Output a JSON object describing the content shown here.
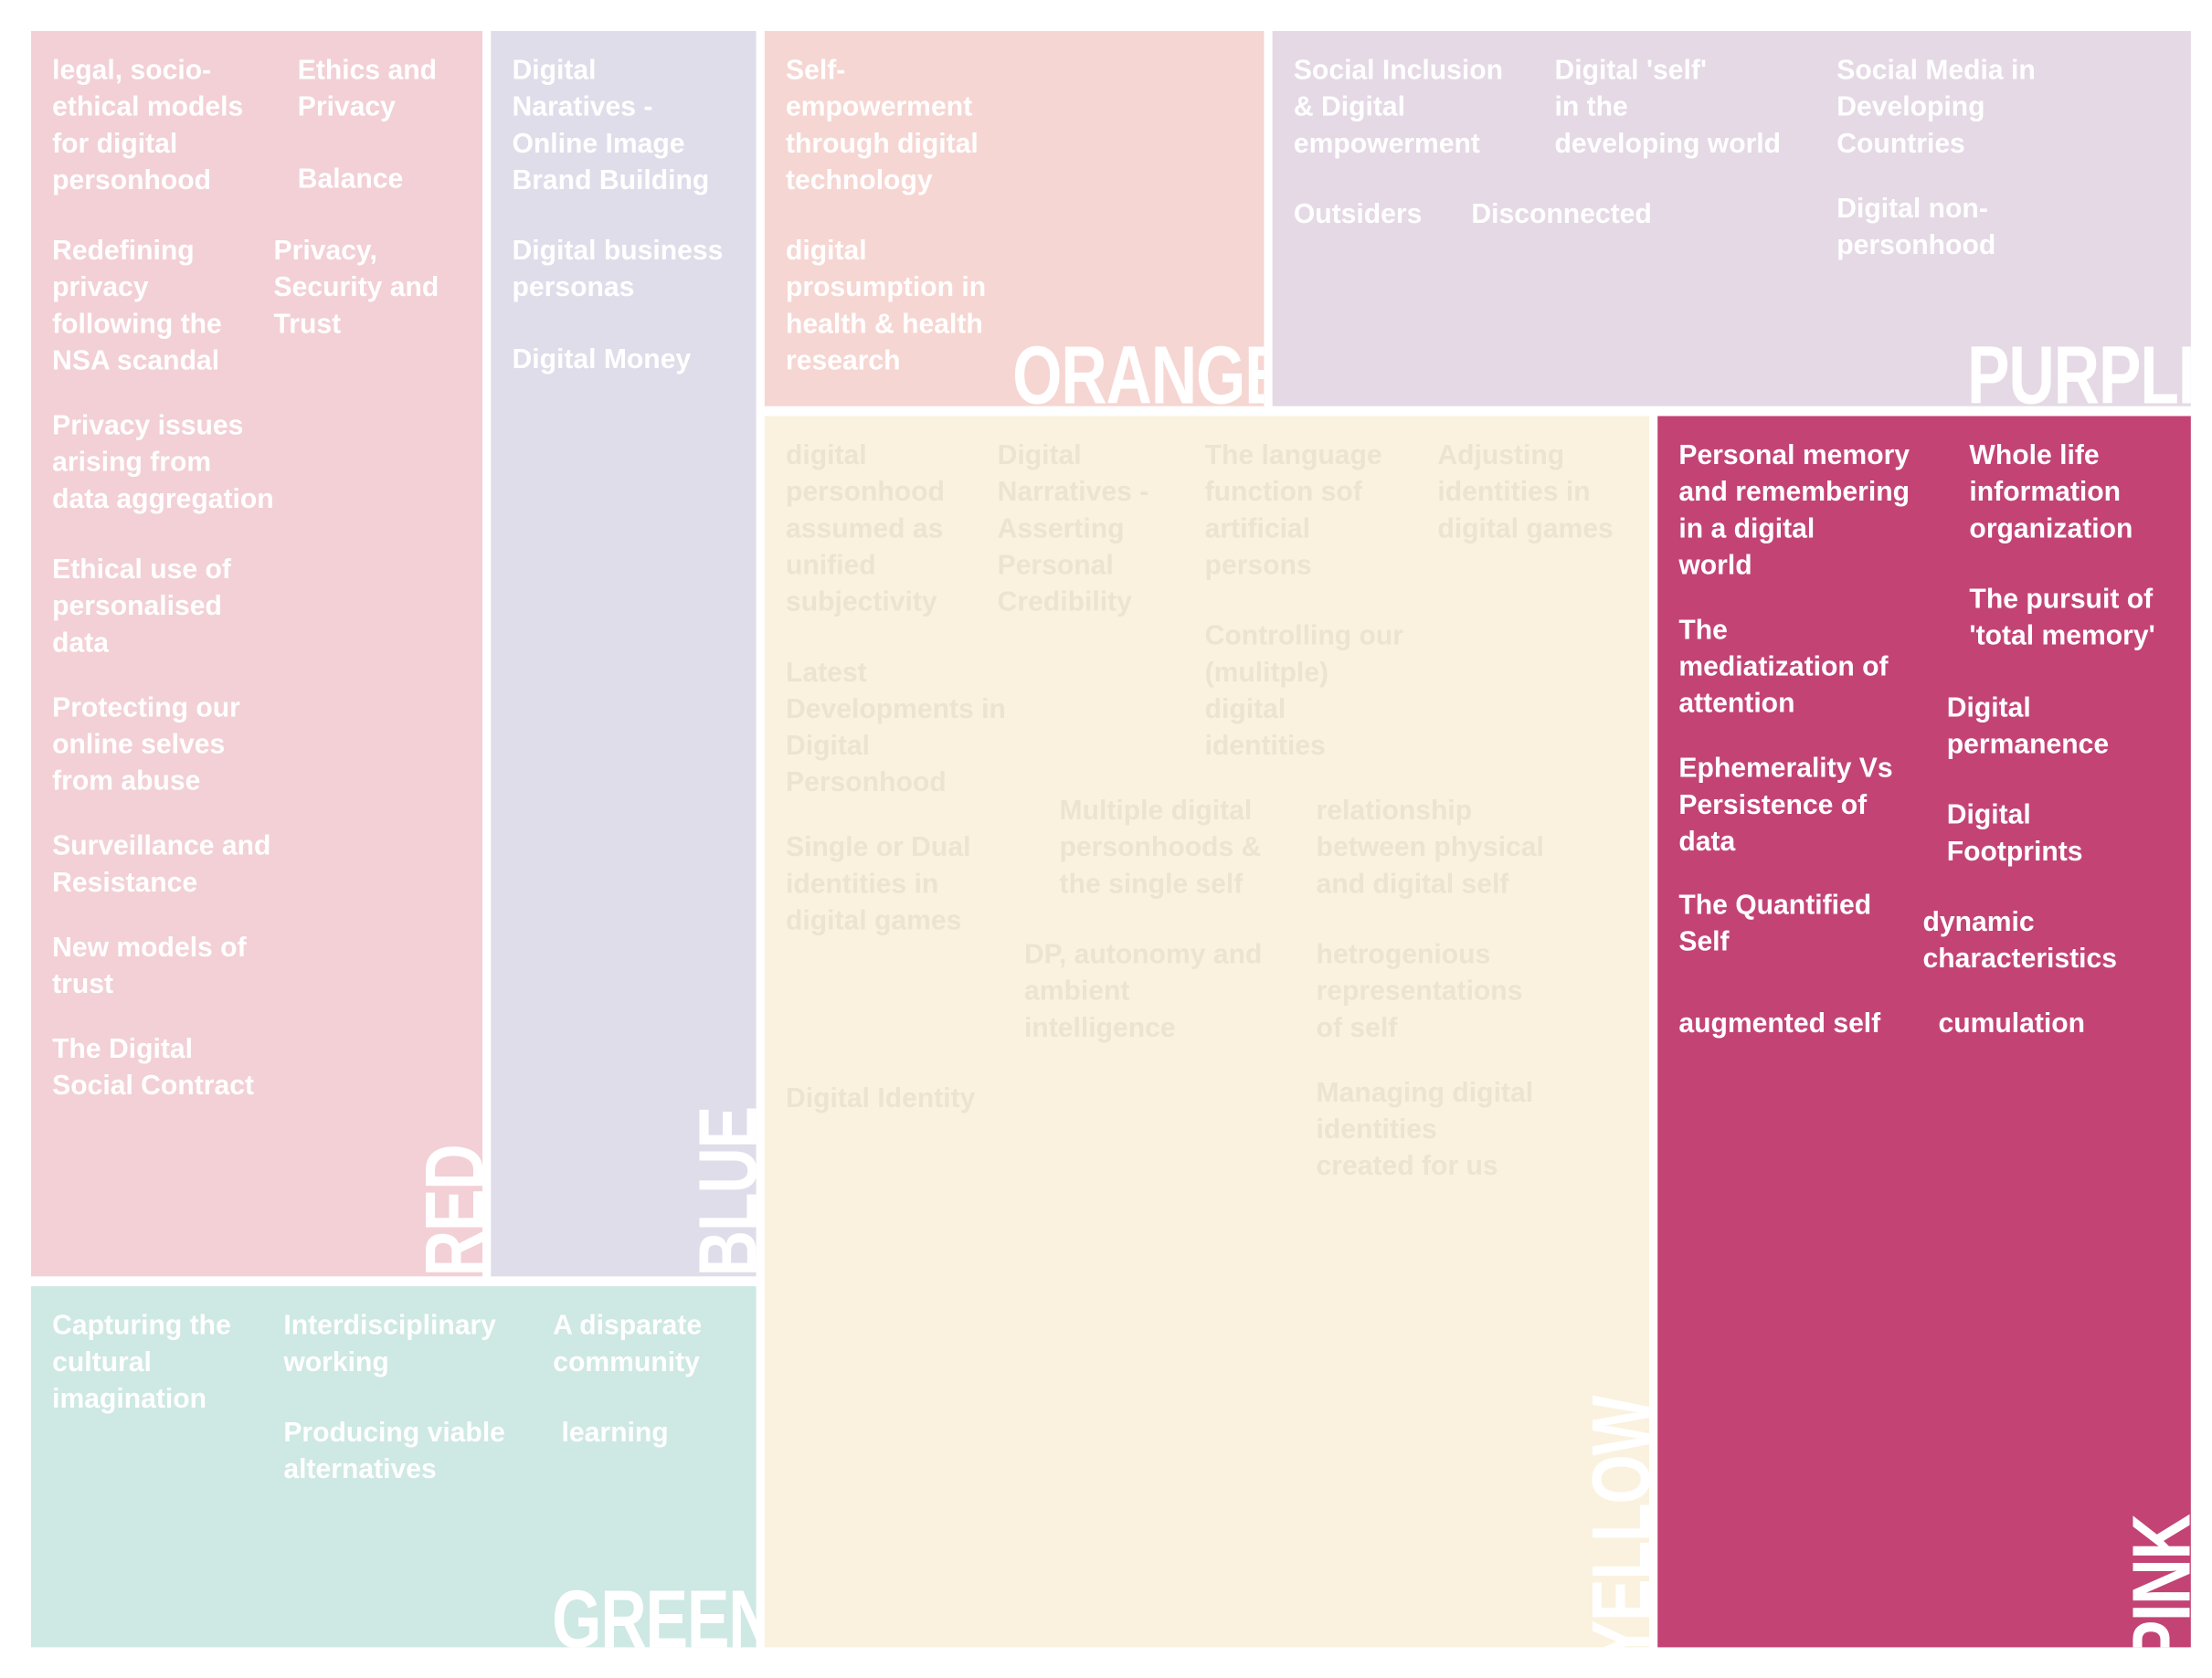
{
  "colors": {
    "red": "#f2d0d6",
    "blue": "#dfdde9",
    "orange": "#f6d6d2",
    "purple": "#e4d9e5",
    "yellow": "#faf2de",
    "pink": "#c34375",
    "green": "#cee8e3"
  },
  "red": {
    "title": "RED",
    "items": [
      "legal, socio-\nethical models\nfor digital\npersonhood",
      "Ethics and\nPrivacy",
      "Balance",
      "Redefining\nprivacy\nfollowing the\nNSA scandal",
      "Privacy,\nSecurity and\nTrust",
      "Privacy issues\narising from\ndata aggregation",
      "Ethical use of\npersonalised\ndata",
      "Protecting our\nonline selves\nfrom abuse",
      "Surveillance and\nResistance",
      "New models of\ntrust",
      "The Digital\nSocial Contract"
    ]
  },
  "blue": {
    "title": "BLUE",
    "items": [
      "Digital\nNaratives -\nOnline Image\nBrand Building",
      "Digital business\npersonas",
      "Digital Money"
    ]
  },
  "orange": {
    "title": "ORANGE",
    "items": [
      "Self-\nempowerment\nthrough digital\ntechnology",
      "digital\nprosumption in\nhealth & health\nresearch"
    ]
  },
  "purple": {
    "title": "PURPLE",
    "items": [
      "Social Inclusion\n& Digital\nempowerment",
      "Digital 'self'\nin the\ndeveloping world",
      "Social Media in\nDeveloping\nCountries",
      "Outsiders",
      "Disconnected",
      "Digital non-\npersonhood"
    ]
  },
  "yellow": {
    "title": "YELLOW",
    "items": [
      "digital\npersonhood\nassumed as\nunified\nsubjectivity",
      "Digital\nNarratives -\nAsserting\nPersonal\nCredibility",
      "The language\nfunction sof\nartificial\npersons",
      "Adjusting\nidentities in\ndigital games",
      "Controlling our\n(mulitple)\ndigital\nidentities",
      "Latest\nDevelopments in\nDigital\nPersonhood",
      "Multiple digital\npersonhoods &\nthe single self",
      "relationship\nbetween physical\nand digital self",
      "Single or Dual\nidentities in\ndigital games",
      "DP, autonomy and\nambient\nintelligence",
      "hetrogenious\nrepresentations\nof self",
      "Digital Identity",
      "Managing digital\nidentities\ncreated for us"
    ]
  },
  "pink": {
    "title": "PINK",
    "items": [
      "Personal memory\nand remembering\nin a digital\nworld",
      "Whole life\ninformation\norganization",
      "The pursuit of\n'total memory'",
      "The\nmediatization of\nattention",
      "Digital\npermanence",
      "Ephemerality Vs\nPersistence of\ndata",
      "Digital\nFootprints",
      "The Quantified\nSelf",
      "dynamic\ncharacteristics",
      "augmented self",
      "cumulation"
    ]
  },
  "green": {
    "title": "GREEN",
    "items": [
      "Capturing the\ncultural\nimagination",
      "Interdisciplinary\nworking",
      "A disparate\ncommunity",
      "Producing viable\nalternatives",
      "learning"
    ]
  }
}
